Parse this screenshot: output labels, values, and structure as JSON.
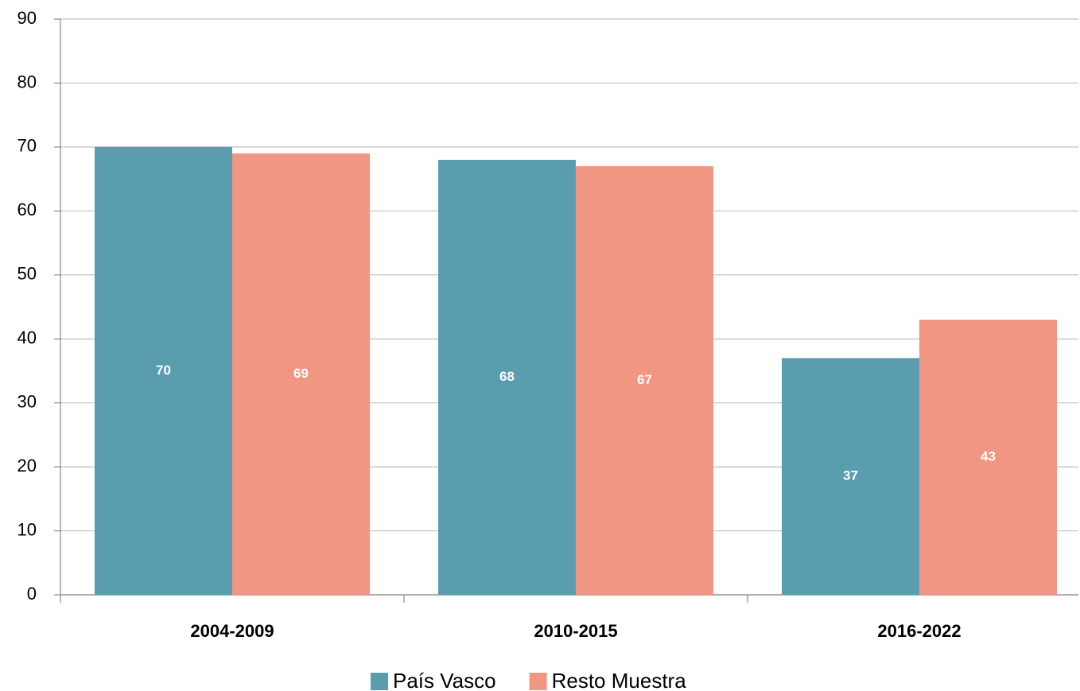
{
  "chart_data": {
    "type": "bar",
    "categories": [
      "2004-2009",
      "2010-2015",
      "2016-2022"
    ],
    "series": [
      {
        "name": "País Vasco",
        "color": "#5a9daf",
        "values": [
          70,
          68,
          37
        ]
      },
      {
        "name": "Resto Muestra",
        "color": "#f19682",
        "values": [
          69,
          67,
          43
        ]
      }
    ],
    "ylim": [
      0,
      90
    ],
    "yticks": [
      0,
      10,
      20,
      30,
      40,
      50,
      60,
      70,
      80,
      90
    ],
    "grid": true,
    "legend": "bottom"
  }
}
